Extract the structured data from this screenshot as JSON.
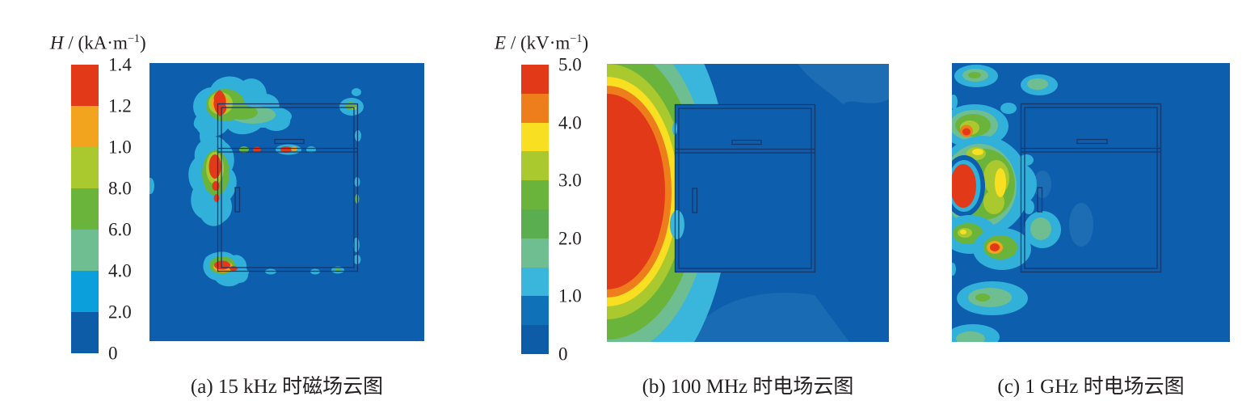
{
  "palette": {
    "red": "#e23a18",
    "orange": "#ee7d1b",
    "amber": "#f2a41e",
    "yellow": "#f8df21",
    "yellowGreen": "#a9c92f",
    "green": "#6ab43c",
    "green2": "#5bae4f",
    "teal": "#6fbe92",
    "cyan": "#3ab5dc",
    "cyanDeep": "#0b9fdb",
    "cyanBlob": "#31b0d9",
    "blue": "#0f72b8",
    "darkBlue": "#0d5ca7",
    "panelBg": "#0d5ead",
    "lightPatch": "#1c6db4",
    "boxStroke": "#16376c",
    "text": "#231f20"
  },
  "colorbars": {
    "h": {
      "label": {
        "sym": "H",
        "mid": " / (",
        "unit": "kA·m",
        "exp": "−1",
        "end": ")"
      },
      "segments": [
        "#e23a18",
        "#f2a41e",
        "#a9c92f",
        "#6ab43c",
        "#6fbe92",
        "#0b9fdb",
        "#0d5ca7"
      ],
      "ticks": [
        "1.4",
        "1.2",
        "1.0",
        "8.0",
        "6.0",
        "4.0",
        "2.0",
        "0"
      ]
    },
    "e": {
      "label": {
        "sym": "E",
        "mid": " / (",
        "unit": "kV·m",
        "exp": "−1",
        "end": ")"
      },
      "segments": [
        "#e23a18",
        "#ee7d1b",
        "#f8df21",
        "#a9c92f",
        "#6ab43c",
        "#5bae4f",
        "#6fbe92",
        "#3ab5dc",
        "#0f72b8",
        "#0d5ca7"
      ],
      "ticks": [
        "5.0",
        "4.0",
        "3.0",
        "2.0",
        "1.0",
        "0"
      ]
    }
  },
  "captions": {
    "a": "(a) 15 kHz 时磁场云图",
    "b": "(b) 100 MHz 时电场云图",
    "c": "(c) 1 GHz 时电场云图"
  },
  "chart_data": [
    {
      "type": "heatmap",
      "subtype": "filled-contour-cloud-map",
      "panel": "a",
      "caption": "(a) 15 kHz 时磁场云图",
      "quantity": "magnetic field strength H",
      "frequency": "15 kHz",
      "colorbar": {
        "label": "H / (kA·m−1)",
        "position": "left of panel",
        "tick_labels_top_to_bottom": [
          "1.4",
          "1.2",
          "1.0",
          "8.0",
          "6.0",
          "4.0",
          "2.0",
          "0"
        ],
        "band_colors_top_to_bottom": [
          "#e23a18",
          "#f2a41e",
          "#a9c92f",
          "#6ab43c",
          "#6fbe92",
          "#0b9fdb",
          "#0d5ca7"
        ]
      },
      "background_level": "0–2.0 band (dark blue) over most of the square domain",
      "geometry": "square domain containing a rectangular shielded enclosure outline with a horizontal divider, a small horizontal slot in the upper compartment and a small vertical slot at the lower left",
      "features": [
        "red hotspot (H ≥ 1.2–1.4) straddling the enclosure top-left corner with yellow-green/green halo and large cyan cloud",
        "elongated red hotspot on the left wall just below the divider with green halo and cyan envelope",
        "red hotspot at the enclosure bottom-left corner with orange fringe and cyan halo hanging below the wall",
        "small red/amber and cyan flecks along the horizontal divider seam",
        "cyan/green seam leakage flecks at the top-right corner, along the right wall and bottom wall",
        "tiny cyan tick at the domain's left edge mid-height"
      ]
    },
    {
      "type": "heatmap",
      "subtype": "filled-contour-cloud-map",
      "panel": "b",
      "caption": "(b) 100 MHz 时电场云图",
      "quantity": "electric field strength E",
      "frequency": "100 MHz",
      "colorbar": {
        "label": "E / (kV·m−1)",
        "position": "left of panel",
        "tick_labels_top_to_bottom": [
          "5.0",
          "4.0",
          "3.0",
          "2.0",
          "1.0",
          "0"
        ],
        "band_colors_top_to_bottom": [
          "#e23a18",
          "#ee7d1b",
          "#f8df21",
          "#a9c92f",
          "#6ab43c",
          "#5bae4f",
          "#6fbe92",
          "#3ab5dc",
          "#0f72b8",
          "#0d5ca7"
        ]
      },
      "background_level": "0–1.0 band (blue) right of the enclosure and inside it",
      "geometry": "same enclosure outline as panel (a), source located at the middle of the left edge",
      "features": [
        "large half-elliptical red core (E ≥ 4.5–5.0) at the left edge spanning roughly two thirds of the panel height",
        "thin concentric decay rings outward: orange, yellow, yellow-green, green, teal",
        "broad cyan (≈1.0–1.5) region wrapping over the top of the enclosure and sweeping down to the bottom edge left of centre",
        "field blocked by enclosure: interior stays blue with a small cyan leakage notch at the left wall",
        "slightly lighter blue elevated region at the top-right corner and below the enclosure"
      ]
    },
    {
      "type": "heatmap",
      "subtype": "filled-contour-cloud-map",
      "panel": "c",
      "caption": "(c) 1 GHz 时电场云图",
      "quantity": "electric field strength E",
      "frequency": "1 GHz",
      "colorbar": {
        "label": "shares E / (kV·m−1) scale of panel (b)",
        "tick_labels_top_to_bottom": [
          "5.0",
          "4.0",
          "3.0",
          "2.0",
          "1.0",
          "0"
        ],
        "band_colors_top_to_bottom": [
          "#e23a18",
          "#ee7d1b",
          "#f8df21",
          "#a9c92f",
          "#6ab43c",
          "#5bae4f",
          "#6fbe92",
          "#3ab5dc",
          "#0f72b8",
          "#0d5ca7"
        ]
      },
      "background_level": "0–1.0 band (dark blue) over most of the domain",
      "geometry": "same enclosure outline, compact source spot on the left edge at ≈45% height",
      "features": [
        "compact red source spot (E ≥ 5.0) at the left edge surrounded by a thin cyan ring and a dark-blue interference null",
        "radial standing-wave lobes: green/yellow-green blobs with cyan halos above, right and below the source",
        "secondary red/orange maxima flecks in the upper-left and lower-right lobes",
        "teal/cyan spots crossing the enclosure left wall and along the bottom edge",
        "faint lighter-blue patches inside the enclosure interior"
      ]
    }
  ]
}
